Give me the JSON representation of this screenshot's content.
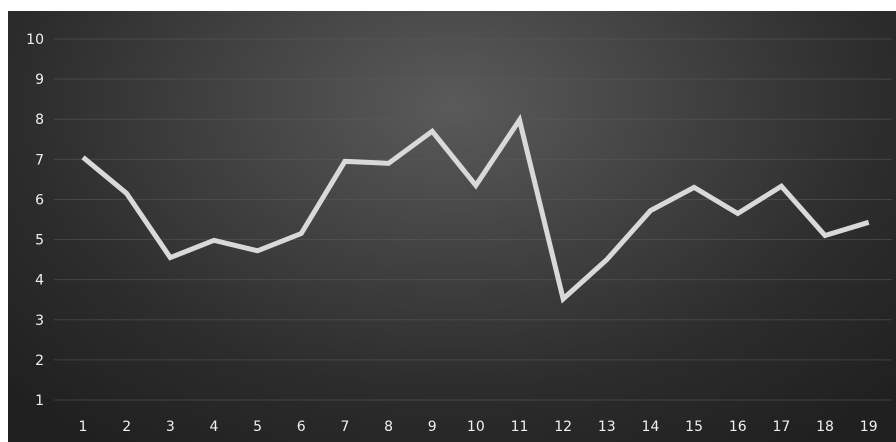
{
  "chart_data": {
    "type": "line",
    "title": "",
    "xlabel": "",
    "ylabel": "",
    "x": [
      1,
      2,
      3,
      4,
      5,
      6,
      7,
      8,
      9,
      10,
      11,
      12,
      13,
      14,
      15,
      16,
      17,
      18,
      19
    ],
    "series": [
      {
        "values": [
          7.05,
          6.15,
          4.55,
          4.98,
          4.72,
          5.15,
          6.95,
          6.9,
          7.7,
          6.35,
          7.98,
          3.52,
          4.5,
          5.72,
          6.3,
          5.65,
          6.33,
          5.1,
          5.43
        ]
      }
    ],
    "ylim": [
      1,
      10
    ],
    "y_ticks": [
      1,
      2,
      3,
      4,
      5,
      6,
      7,
      8,
      9,
      10
    ],
    "grid": true,
    "legend": "none",
    "background": "#333333",
    "line_color": "#d9d9d9",
    "text_color": "#f0f0f0"
  }
}
